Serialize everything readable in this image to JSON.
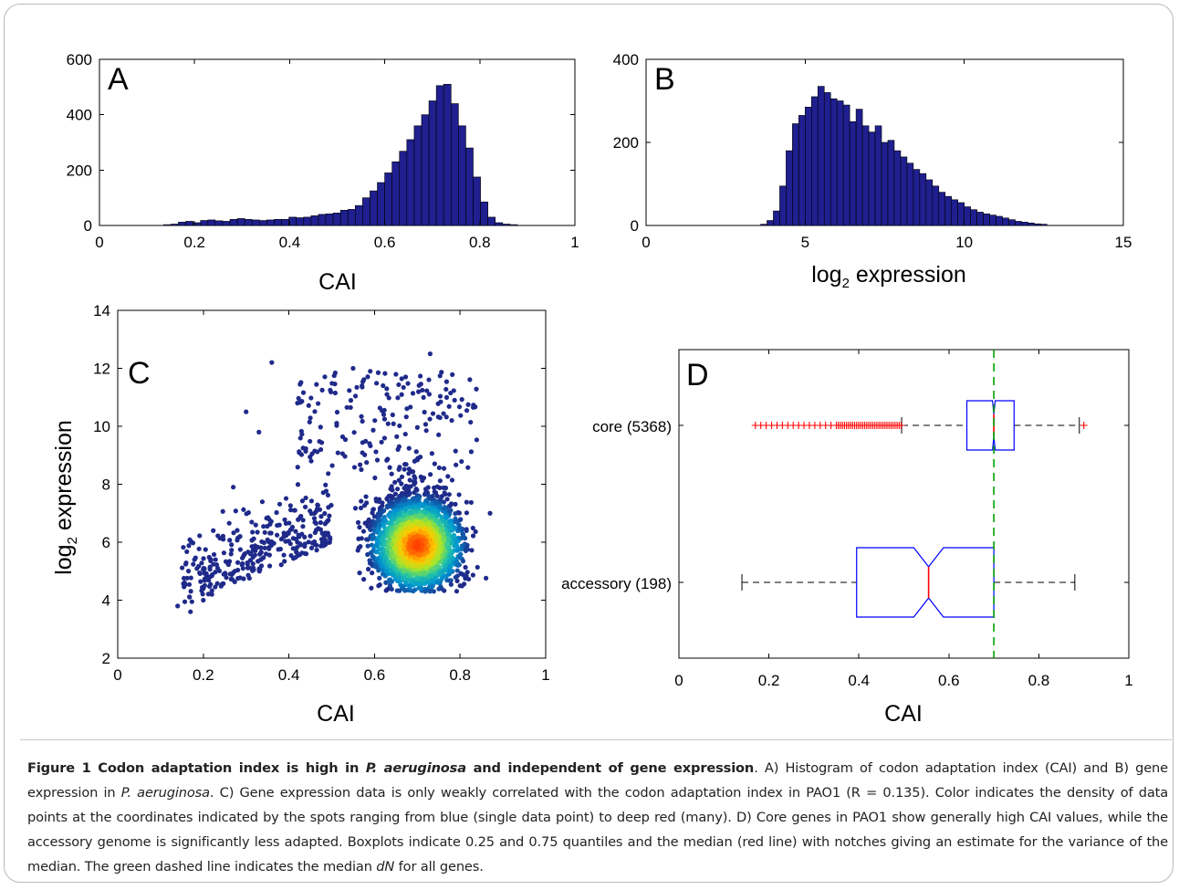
{
  "caption": {
    "lead_prefix": "Figure 1 Codon adaptation index is high in ",
    "lead_species": "P. aeruginosa",
    "lead_suffix": " and independent of gene expression",
    "p1": ". A) Histogram of codon adaptation index (CAI) and B) gene expression in ",
    "p1_species": "P. aeruginosa",
    "p2": ". C) Gene expression data is only weakly correlated with the codon adaptation index in PAO1 (R = 0.135). Color indicates the density of data points at the coordinates indicated by the spots ranging from blue (single data point) to deep red (many). D) Core genes in PAO1 show generally high CAI values, while the accessory genome is significantly less adapted. Boxplots indicate 0.25 and 0.75 quantiles and the median (red line) with notches giving an estimate for the variance of the median. The green dashed line indicates the median ",
    "p2_dn": "dN",
    "p3": " for all genes."
  },
  "colors": {
    "bar_fill": "#1f1f8f",
    "bar_edge": "#000000",
    "median": "#ff0000",
    "box": "#0000ff",
    "outlier": "#ff0000",
    "ref_line": "#00a000",
    "density_low": "#1f2a8a",
    "density_high": "#ff2000"
  },
  "chart_data": [
    {
      "panel": "A",
      "type": "bar",
      "xlabel": "CAI",
      "ylabel": "",
      "xlim": [
        0,
        1
      ],
      "ylim": [
        0,
        600
      ],
      "xticks": [
        0,
        0.2,
        0.4,
        0.6,
        0.8,
        1
      ],
      "yticks": [
        0,
        200,
        400,
        600
      ],
      "bin_start": 0.135,
      "bin_width": 0.0155,
      "values": [
        3,
        5,
        12,
        15,
        10,
        18,
        20,
        17,
        15,
        22,
        25,
        22,
        20,
        18,
        20,
        22,
        22,
        30,
        28,
        30,
        35,
        40,
        42,
        45,
        55,
        58,
        72,
        100,
        125,
        155,
        190,
        230,
        268,
        310,
        360,
        400,
        450,
        505,
        510,
        440,
        360,
        280,
        175,
        85,
        30,
        10,
        5,
        3
      ]
    },
    {
      "panel": "B",
      "type": "bar",
      "xlabel": "log₂ expression",
      "ylabel": "",
      "xlim": [
        0,
        15
      ],
      "ylim": [
        0,
        400
      ],
      "xticks": [
        0,
        5,
        10,
        15
      ],
      "yticks": [
        0,
        200,
        400
      ],
      "bin_start": 3.6,
      "bin_width": 0.2,
      "values": [
        3,
        12,
        35,
        95,
        180,
        245,
        265,
        285,
        310,
        335,
        320,
        305,
        300,
        290,
        250,
        280,
        240,
        225,
        240,
        200,
        205,
        180,
        165,
        150,
        135,
        125,
        110,
        95,
        80,
        70,
        62,
        55,
        45,
        38,
        32,
        28,
        25,
        22,
        18,
        14,
        10,
        8,
        6,
        4,
        3
      ]
    },
    {
      "panel": "C",
      "type": "scatter",
      "xlabel": "CAI",
      "ylabel": "log₂ expression",
      "xlim": [
        0,
        1
      ],
      "ylim": [
        2,
        14
      ],
      "xticks": [
        0,
        0.2,
        0.4,
        0.6,
        0.8,
        1
      ],
      "yticks": [
        2,
        4,
        6,
        8,
        10,
        12,
        14
      ],
      "color_encoding": "density (blue = single point, red = many)",
      "points_sample": [
        [
          0.14,
          3.8
        ],
        [
          0.17,
          3.6
        ],
        [
          0.2,
          4.0
        ],
        [
          0.22,
          4.2
        ],
        [
          0.27,
          7.9
        ],
        [
          0.3,
          10.5
        ],
        [
          0.33,
          9.8
        ],
        [
          0.36,
          12.2
        ],
        [
          0.42,
          10.8
        ],
        [
          0.55,
          12.0
        ],
        [
          0.59,
          11.9
        ],
        [
          0.73,
          12.5
        ],
        [
          0.7,
          5.8
        ],
        [
          0.72,
          6.0
        ],
        [
          0.68,
          6.5
        ],
        [
          0.75,
          5.5
        ],
        [
          0.8,
          4.5
        ],
        [
          0.87,
          7.0
        ]
      ]
    },
    {
      "panel": "D",
      "type": "boxplot",
      "xlabel": "CAI",
      "ylabel": "",
      "xlim": [
        0,
        1
      ],
      "xticks": [
        0,
        0.2,
        0.4,
        0.6,
        0.8,
        1
      ],
      "reference_line_x": 0.7,
      "groups": [
        {
          "label": "core (5368)",
          "whisker_low": 0.495,
          "q1": 0.64,
          "median": 0.7,
          "q3": 0.745,
          "whisker_high": 0.89,
          "notch": [
            0.697,
            0.703
          ],
          "outliers_range": [
            0.17,
            0.495
          ],
          "outliers_high": [
            0.9
          ]
        },
        {
          "label": "accessory (198)",
          "whisker_low": 0.14,
          "q1": 0.395,
          "median": 0.555,
          "q3": 0.7,
          "whisker_high": 0.88,
          "notch": [
            0.522,
            0.588
          ],
          "outliers_range": [],
          "outliers_high": []
        }
      ]
    }
  ]
}
